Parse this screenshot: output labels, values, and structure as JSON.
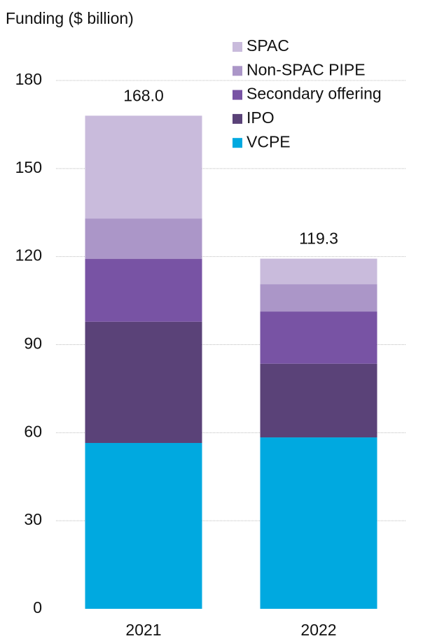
{
  "chart_data": {
    "type": "stacked_bar",
    "y_label": "Funding ($ billion)",
    "categories": [
      "2021",
      "2022"
    ],
    "series": [
      {
        "name": "VCPE",
        "color": "#00a9e0",
        "values": [
          56.5,
          58.4
        ]
      },
      {
        "name": "IPO",
        "color": "#5a4278",
        "values": [
          41.3,
          25.1
        ]
      },
      {
        "name": "Secondary offering",
        "color": "#7853a4",
        "values": [
          21.4,
          17.8
        ]
      },
      {
        "name": "Non-SPAC PIPE",
        "color": "#ab96c8",
        "values": [
          13.8,
          9.3
        ]
      },
      {
        "name": "SPAC",
        "color": "#c9bbdc",
        "values": [
          35.0,
          8.7
        ]
      }
    ],
    "totals": [
      168,
      119.3
    ],
    "total_labels": [
      "168.0",
      "119.3"
    ],
    "ylim": [
      0,
      180
    ],
    "yticks": [
      0,
      30,
      60,
      90,
      120,
      150,
      180
    ],
    "grid": true,
    "legend": "top-right"
  }
}
